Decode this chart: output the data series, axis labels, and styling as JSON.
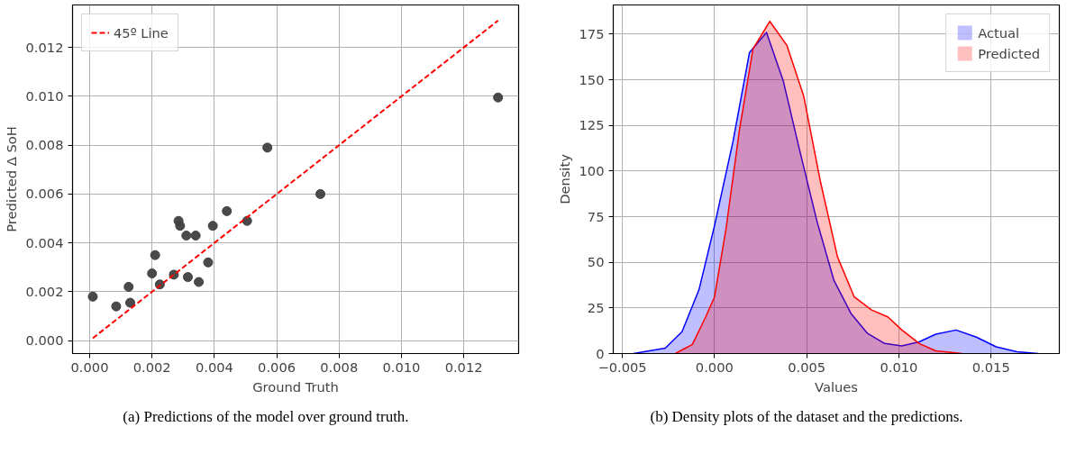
{
  "chart_data": [
    {
      "type": "scatter",
      "xlabel": "Ground Truth",
      "ylabel": "Predicted Δ SoH",
      "xlim": [
        -0.00055,
        0.01376
      ],
      "ylim": [
        -0.00053,
        0.01374
      ],
      "xticks": [
        {
          "value": 0,
          "label": "0.000"
        },
        {
          "value": 0.002,
          "label": "0.002"
        },
        {
          "value": 0.004,
          "label": "0.004"
        },
        {
          "value": 0.006,
          "label": "0.006"
        },
        {
          "value": 0.008,
          "label": "0.008"
        },
        {
          "value": 0.01,
          "label": "0.010"
        },
        {
          "value": 0.012,
          "label": "0.012"
        }
      ],
      "yticks": [
        {
          "value": 0,
          "label": "0.000"
        },
        {
          "value": 0.002,
          "label": "0.002"
        },
        {
          "value": 0.004,
          "label": "0.004"
        },
        {
          "value": 0.006,
          "label": "0.006"
        },
        {
          "value": 0.008,
          "label": "0.008"
        },
        {
          "value": 0.01,
          "label": "0.010"
        },
        {
          "value": 0.012,
          "label": "0.012"
        }
      ],
      "grid": true,
      "legend": "top left",
      "series": [
        {
          "type": "scatter",
          "marker": "circle",
          "color": "#404040",
          "x": [
            0.0001,
            0.00085,
            0.00125,
            0.0013,
            0.002,
            0.0021,
            0.00225,
            0.0027,
            0.00285,
            0.0029,
            0.0031,
            0.00315,
            0.0034,
            0.0035,
            0.0038,
            0.00395,
            0.0044,
            0.00505,
            0.0057,
            0.0074,
            0.0131
          ],
          "values": [
            0.0018,
            0.0014,
            0.0022,
            0.00155,
            0.00275,
            0.0035,
            0.0023,
            0.0027,
            0.0049,
            0.0047,
            0.0043,
            0.0026,
            0.0043,
            0.0024,
            0.0032,
            0.0047,
            0.0053,
            0.0049,
            0.0079,
            0.006,
            0.00995
          ]
        },
        {
          "type": "line",
          "name": "45º Line",
          "color": "#ff0000",
          "line_style": "dashed",
          "x": [
            0.0001,
            0.0131
          ],
          "values": [
            0.0001,
            0.0131
          ]
        }
      ],
      "annotations": [
        "(a) Predictions of the model over ground truth."
      ]
    },
    {
      "type": "area",
      "xlabel": "Values",
      "ylabel": "Density",
      "xlim": [
        -0.00549,
        0.0187
      ],
      "ylim": [
        0,
        191
      ],
      "xticks": [
        {
          "value": -0.005,
          "label": "−0.005"
        },
        {
          "value": 0,
          "label": "0.000"
        },
        {
          "value": 0.005,
          "label": "0.005"
        },
        {
          "value": 0.01,
          "label": "0.010"
        },
        {
          "value": 0.015,
          "label": "0.015"
        }
      ],
      "yticks": [
        0,
        25,
        50,
        75,
        100,
        125,
        150,
        175
      ],
      "grid": true,
      "legend": "top right",
      "series": [
        {
          "name": "Actual",
          "color": "#0000ff",
          "x": [
            -0.0044,
            -0.00267,
            -0.00176,
            -0.00084,
            0,
            0.001,
            0.0019,
            0.00282,
            0.00374,
            0.00465,
            0.00557,
            0.00648,
            0.0074,
            0.0083,
            0.00923,
            0.01015,
            0.0111,
            0.012,
            0.0131,
            0.0142,
            0.01527,
            0.0164,
            0.01756
          ],
          "values": [
            0,
            3,
            12,
            35,
            70,
            116,
            165,
            176,
            149,
            110,
            72,
            40,
            22,
            11,
            5.5,
            4.2,
            6.4,
            10.6,
            12.9,
            9,
            3.7,
            1,
            0
          ]
        },
        {
          "name": "Predicted",
          "color": "#ff0000",
          "x": [
            -0.00212,
            -0.0012,
            -0.00048,
            0,
            0.00062,
            0.00136,
            0.00209,
            0.003,
            0.00392,
            0.00484,
            0.00575,
            0.00667,
            0.00758,
            0.0085,
            0.00941,
            0.01015,
            0.0111,
            0.012,
            0.01344
          ],
          "values": [
            0,
            5,
            20,
            31,
            68,
            123,
            167,
            182,
            169,
            141,
            94,
            53,
            31,
            24,
            20,
            13,
            5.5,
            1.5,
            0
          ]
        }
      ],
      "annotations": [
        "(b) Density plots of the dataset and the predictions."
      ]
    }
  ]
}
